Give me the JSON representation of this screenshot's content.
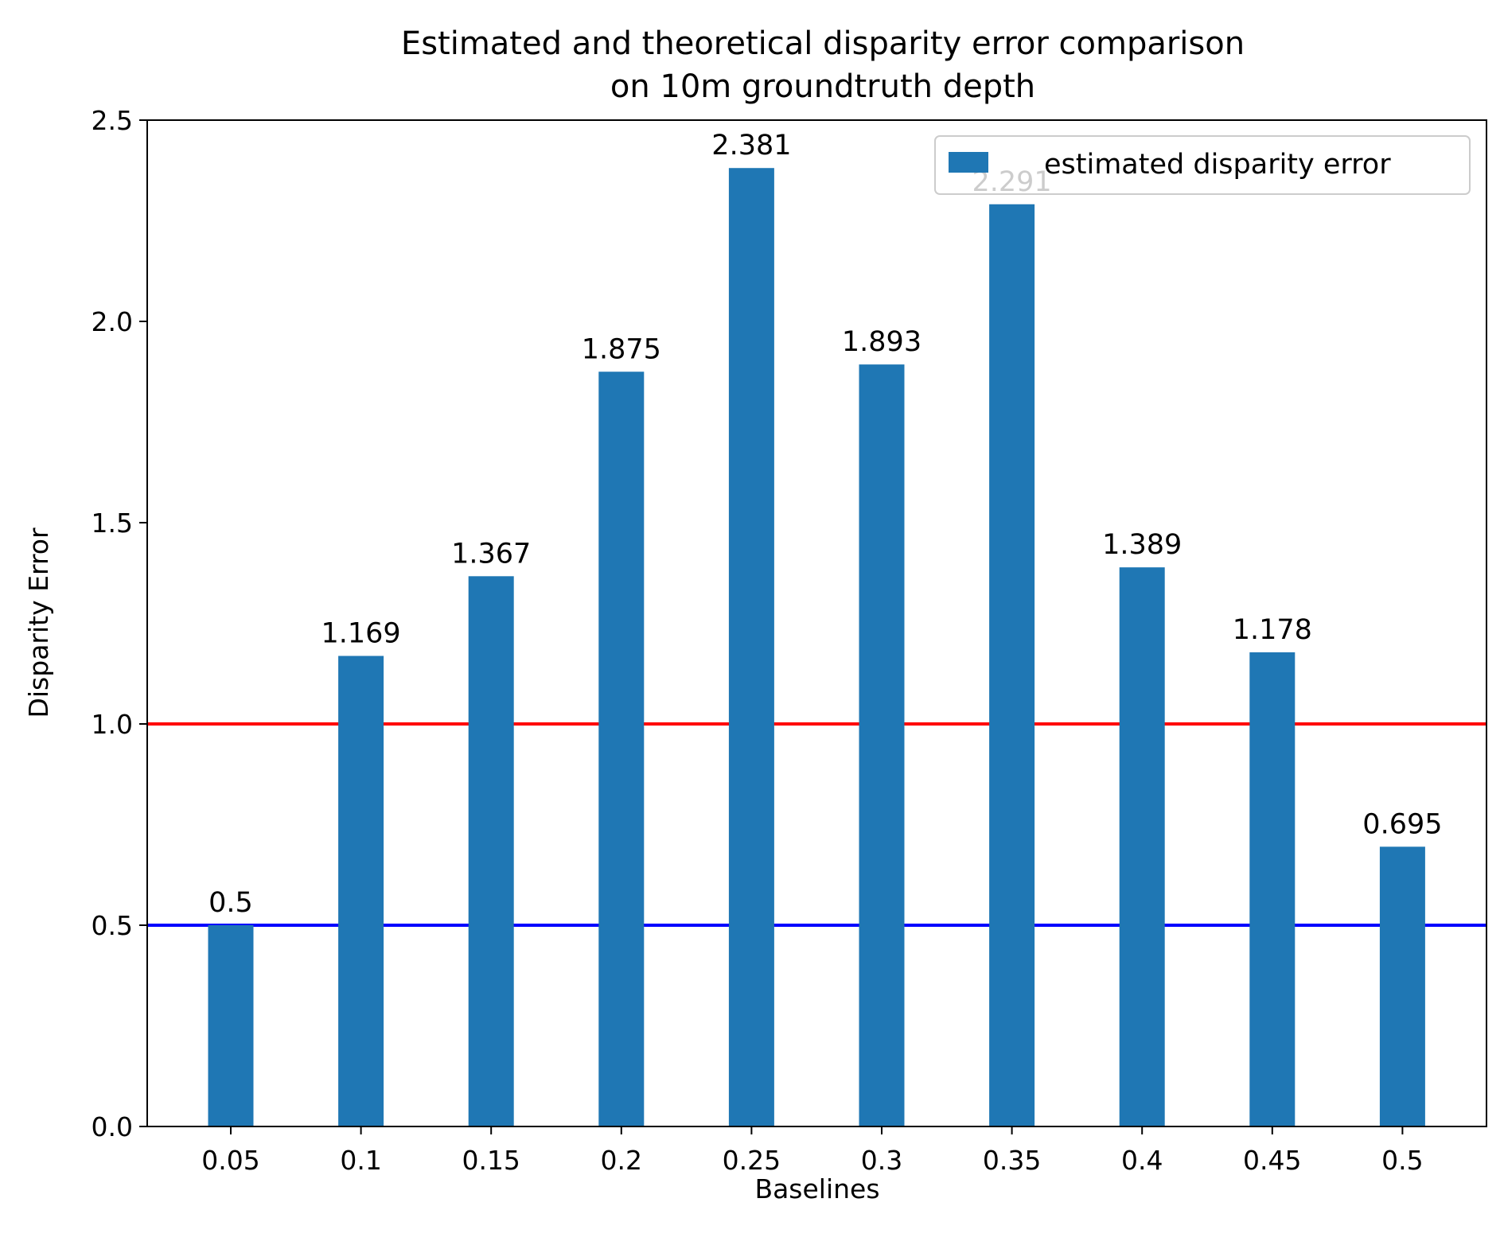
{
  "chart_data": {
    "type": "bar",
    "title": [
      "Estimated and theoretical disparity error comparison",
      "on 10m groundtruth depth"
    ],
    "xlabel": "Baselines",
    "ylabel": "Disparity Error",
    "categories": [
      "0.05",
      "0.1",
      "0.15",
      "0.2",
      "0.25",
      "0.3",
      "0.35",
      "0.4",
      "0.45",
      "0.5"
    ],
    "series": [
      {
        "name": "estimated disparity error",
        "values": [
          0.5,
          1.169,
          1.367,
          1.875,
          2.381,
          1.893,
          2.291,
          1.389,
          1.178,
          0.695
        ],
        "labels": [
          "0.5",
          "1.169",
          "1.367",
          "1.875",
          "2.381",
          "1.893",
          "2.291",
          "1.389",
          "1.178",
          "0.695"
        ],
        "color": "#1f77b4"
      }
    ],
    "reference_lines": [
      {
        "y": 1.0,
        "color": "#ff0000"
      },
      {
        "y": 0.5,
        "color": "#0000ff"
      }
    ],
    "ylim": [
      0,
      2.5
    ],
    "yticks": [
      "0.0",
      "0.5",
      "1.0",
      "1.5",
      "2.0",
      "2.5"
    ],
    "grid": false,
    "legend_position": "top-right"
  }
}
